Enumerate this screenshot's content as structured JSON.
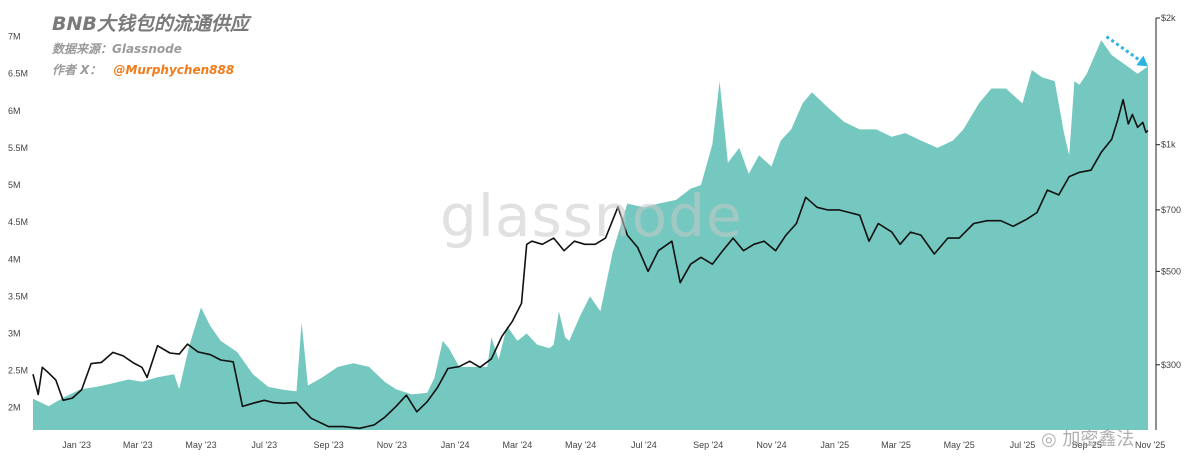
{
  "header": {
    "title": "BNB大钱包的流通供应",
    "source": "数据来源：Glassnode",
    "author_label": "作者 X：",
    "author_handle": "@Murphychen888"
  },
  "watermarks": {
    "logo": "glassnode",
    "corner": "◎ 加密鑫法"
  },
  "colors": {
    "supply_fill": "#74c8bf",
    "price_line": "#111111",
    "handle_text": "#f07c1b",
    "arrow": "#2ab3e3"
  },
  "chart_data": {
    "type": "area",
    "title": "BNB大钱包的流通供应",
    "x_axis": {
      "type": "date",
      "tick_labels": [
        "Jan '23",
        "Mar '23",
        "May '23",
        "Jul '23",
        "Sep '23",
        "Nov '23",
        "Jan '24",
        "Mar '24",
        "May '24",
        "Jul '24",
        "Sep '24",
        "Nov '24",
        "Jan '25",
        "Mar '25",
        "May '25",
        "Jul '25",
        "Sep '25",
        "Nov '25"
      ],
      "tick_dates": [
        "2023-01-01",
        "2023-03-01",
        "2023-05-01",
        "2023-07-01",
        "2023-09-01",
        "2023-11-01",
        "2024-01-01",
        "2024-03-01",
        "2024-05-01",
        "2024-07-01",
        "2024-09-01",
        "2024-11-01",
        "2025-01-01",
        "2025-03-01",
        "2025-05-01",
        "2025-07-01",
        "2025-09-01",
        "2025-11-01"
      ],
      "range": [
        "2022-11-20",
        "2025-10-30"
      ]
    },
    "y_left": {
      "tick_labels": [
        "2M",
        "2.5M",
        "3M",
        "3.5M",
        "4M",
        "4.5M",
        "5M",
        "5.5M",
        "6M",
        "6.5M",
        "7M"
      ],
      "tick_values": [
        2000000,
        2500000,
        3000000,
        3500000,
        4000000,
        4500000,
        5000000,
        5500000,
        6000000,
        6500000,
        7000000
      ],
      "range": [
        1700000,
        7250000
      ],
      "grid": false
    },
    "y_right": {
      "scale": "log",
      "tick_labels": [
        "$300",
        "$500",
        "$700",
        "$1k",
        "$2k"
      ],
      "tick_values": [
        300,
        500,
        700,
        1000,
        2000
      ],
      "range": [
        210,
        2000
      ]
    },
    "series": [
      {
        "type": "area",
        "axis": "left",
        "color": "#74c8bf",
        "points": [
          [
            "2022-11-20",
            2120000.0
          ],
          [
            "2022-12-05",
            2020000.0
          ],
          [
            "2022-12-20",
            2140000.0
          ],
          [
            "2023-01-05",
            2250000.0
          ],
          [
            "2023-01-20",
            2280000.0
          ],
          [
            "2023-02-05",
            2330000.0
          ],
          [
            "2023-02-20",
            2380000.0
          ],
          [
            "2023-03-05",
            2350000.0
          ],
          [
            "2023-03-20",
            2410000.0
          ],
          [
            "2023-04-05",
            2450000.0
          ],
          [
            "2023-04-10",
            2250000.0
          ],
          [
            "2023-04-20",
            2850000.0
          ],
          [
            "2023-05-01",
            3350000.0
          ],
          [
            "2023-05-10",
            3100000.0
          ],
          [
            "2023-05-20",
            2900000.0
          ],
          [
            "2023-06-05",
            2750000.0
          ],
          [
            "2023-06-20",
            2450000.0
          ],
          [
            "2023-07-05",
            2280000.0
          ],
          [
            "2023-07-20",
            2240000.0
          ],
          [
            "2023-08-01",
            2220000.0
          ],
          [
            "2023-08-06",
            3150000.0
          ],
          [
            "2023-08-12",
            2300000.0
          ],
          [
            "2023-08-25",
            2400000.0
          ],
          [
            "2023-09-10",
            2550000.0
          ],
          [
            "2023-09-25",
            2600000.0
          ],
          [
            "2023-10-10",
            2550000.0
          ],
          [
            "2023-10-25",
            2350000.0
          ],
          [
            "2023-11-05",
            2250000.0
          ],
          [
            "2023-11-20",
            2180000.0
          ],
          [
            "2023-12-05",
            2200000.0
          ],
          [
            "2023-12-12",
            2400000.0
          ],
          [
            "2023-12-20",
            2900000.0
          ],
          [
            "2023-12-26",
            2800000.0
          ],
          [
            "2024-01-05",
            2550000.0
          ],
          [
            "2024-01-20",
            2550000.0
          ],
          [
            "2024-02-01",
            2550000.0
          ],
          [
            "2024-02-05",
            2950000.0
          ],
          [
            "2024-02-12",
            2650000.0
          ],
          [
            "2024-02-20",
            3100000.0
          ],
          [
            "2024-03-01",
            2900000.0
          ],
          [
            "2024-03-10",
            3000000.0
          ],
          [
            "2024-03-20",
            2850000.0
          ],
          [
            "2024-04-01",
            2800000.0
          ],
          [
            "2024-04-05",
            2850000.0
          ],
          [
            "2024-04-10",
            3300000.0
          ],
          [
            "2024-04-16",
            2950000.0
          ],
          [
            "2024-04-20",
            2900000.0
          ],
          [
            "2024-05-01",
            3250000.0
          ],
          [
            "2024-05-10",
            3500000.0
          ],
          [
            "2024-05-20",
            3300000.0
          ],
          [
            "2024-06-01",
            4100000.0
          ],
          [
            "2024-06-15",
            4750000.0
          ],
          [
            "2024-07-01",
            4700000.0
          ],
          [
            "2024-07-15",
            4750000.0
          ],
          [
            "2024-08-01",
            4800000.0
          ],
          [
            "2024-08-15",
            4950000.0
          ],
          [
            "2024-08-25",
            5000000.0
          ],
          [
            "2024-09-05",
            5550000.0
          ],
          [
            "2024-09-12",
            6400000.0
          ],
          [
            "2024-09-20",
            5300000.0
          ],
          [
            "2024-10-01",
            5500000.0
          ],
          [
            "2024-10-10",
            5150000.0
          ],
          [
            "2024-10-20",
            5400000.0
          ],
          [
            "2024-11-01",
            5250000.0
          ],
          [
            "2024-11-10",
            5600000.0
          ],
          [
            "2024-11-20",
            5750000.0
          ],
          [
            "2024-12-01",
            6100000.0
          ],
          [
            "2024-12-10",
            6250000.0
          ],
          [
            "2024-12-25",
            6050000.0
          ],
          [
            "2025-01-10",
            5850000.0
          ],
          [
            "2025-01-25",
            5750000.0
          ],
          [
            "2025-02-10",
            5750000.0
          ],
          [
            "2025-02-25",
            5650000.0
          ],
          [
            "2025-03-10",
            5700000.0
          ],
          [
            "2025-03-25",
            5600000.0
          ],
          [
            "2025-04-10",
            5500000.0
          ],
          [
            "2025-04-25",
            5600000.0
          ],
          [
            "2025-05-05",
            5750000.0
          ],
          [
            "2025-05-20",
            6100000.0
          ],
          [
            "2025-06-01",
            6300000.0
          ],
          [
            "2025-06-15",
            6300000.0
          ],
          [
            "2025-07-01",
            6100000.0
          ],
          [
            "2025-07-10",
            6550000.0
          ],
          [
            "2025-07-20",
            6450000.0
          ],
          [
            "2025-08-01",
            6400000.0
          ],
          [
            "2025-08-10",
            5700000.0
          ],
          [
            "2025-08-15",
            5400000.0
          ],
          [
            "2025-08-20",
            6400000.0
          ],
          [
            "2025-08-25",
            6350000.0
          ],
          [
            "2025-09-01",
            6500000.0
          ],
          [
            "2025-09-15",
            6950000.0
          ],
          [
            "2025-09-25",
            6750000.0
          ],
          [
            "2025-10-10",
            6600000.0
          ],
          [
            "2025-10-20",
            6500000.0
          ],
          [
            "2025-10-30",
            6600000.0
          ]
        ]
      },
      {
        "type": "line",
        "axis": "right",
        "color": "#111111",
        "points": [
          [
            "2022-11-20",
            285
          ],
          [
            "2022-11-25",
            255
          ],
          [
            "2022-11-29",
            296
          ],
          [
            "2022-12-05",
            287
          ],
          [
            "2022-12-12",
            276
          ],
          [
            "2022-12-19",
            247
          ],
          [
            "2022-12-28",
            250
          ],
          [
            "2023-01-06",
            262
          ],
          [
            "2023-01-15",
            302
          ],
          [
            "2023-01-25",
            304
          ],
          [
            "2023-02-05",
            321
          ],
          [
            "2023-02-15",
            315
          ],
          [
            "2023-02-25",
            303
          ],
          [
            "2023-03-05",
            296
          ],
          [
            "2023-03-10",
            280
          ],
          [
            "2023-03-20",
            333
          ],
          [
            "2023-04-01",
            320
          ],
          [
            "2023-04-10",
            318
          ],
          [
            "2023-04-18",
            336
          ],
          [
            "2023-04-28",
            322
          ],
          [
            "2023-05-10",
            317
          ],
          [
            "2023-05-20",
            308
          ],
          [
            "2023-06-01",
            305
          ],
          [
            "2023-06-10",
            239
          ],
          [
            "2023-06-20",
            243
          ],
          [
            "2023-07-01",
            247
          ],
          [
            "2023-07-10",
            244
          ],
          [
            "2023-07-20",
            243
          ],
          [
            "2023-08-01",
            244
          ],
          [
            "2023-08-15",
            224
          ],
          [
            "2023-09-01",
            214
          ],
          [
            "2023-09-15",
            214
          ],
          [
            "2023-10-01",
            212
          ],
          [
            "2023-10-15",
            216
          ],
          [
            "2023-10-25",
            225
          ],
          [
            "2023-11-05",
            239
          ],
          [
            "2023-11-15",
            254
          ],
          [
            "2023-11-25",
            232
          ],
          [
            "2023-12-05",
            245
          ],
          [
            "2023-12-15",
            265
          ],
          [
            "2023-12-25",
            294
          ],
          [
            "2024-01-05",
            297
          ],
          [
            "2024-01-15",
            306
          ],
          [
            "2024-01-25",
            296
          ],
          [
            "2024-02-05",
            310
          ],
          [
            "2024-02-15",
            350
          ],
          [
            "2024-02-25",
            380
          ],
          [
            "2024-03-05",
            420
          ],
          [
            "2024-03-10",
            580
          ],
          [
            "2024-03-15",
            590
          ],
          [
            "2024-03-25",
            580
          ],
          [
            "2024-04-05",
            600
          ],
          [
            "2024-04-15",
            560
          ],
          [
            "2024-04-25",
            590
          ],
          [
            "2024-05-05",
            580
          ],
          [
            "2024-05-15",
            580
          ],
          [
            "2024-05-25",
            600
          ],
          [
            "2024-06-06",
            712
          ],
          [
            "2024-06-15",
            610
          ],
          [
            "2024-06-25",
            570
          ],
          [
            "2024-07-05",
            500
          ],
          [
            "2024-07-15",
            560
          ],
          [
            "2024-07-28",
            590
          ],
          [
            "2024-08-05",
            470
          ],
          [
            "2024-08-15",
            520
          ],
          [
            "2024-08-25",
            540
          ],
          [
            "2024-09-05",
            520
          ],
          [
            "2024-09-15",
            560
          ],
          [
            "2024-09-25",
            600
          ],
          [
            "2024-10-05",
            560
          ],
          [
            "2024-10-15",
            580
          ],
          [
            "2024-10-25",
            590
          ],
          [
            "2024-11-05",
            560
          ],
          [
            "2024-11-15",
            610
          ],
          [
            "2024-11-25",
            650
          ],
          [
            "2024-12-04",
            750
          ],
          [
            "2024-12-15",
            710
          ],
          [
            "2024-12-25",
            700
          ],
          [
            "2025-01-05",
            700
          ],
          [
            "2025-01-15",
            690
          ],
          [
            "2025-01-25",
            680
          ],
          [
            "2025-02-03",
            590
          ],
          [
            "2025-02-12",
            650
          ],
          [
            "2025-02-25",
            620
          ],
          [
            "2025-03-05",
            580
          ],
          [
            "2025-03-15",
            620
          ],
          [
            "2025-03-25",
            610
          ],
          [
            "2025-04-07",
            550
          ],
          [
            "2025-04-20",
            600
          ],
          [
            "2025-05-01",
            600
          ],
          [
            "2025-05-15",
            650
          ],
          [
            "2025-05-28",
            660
          ],
          [
            "2025-06-10",
            660
          ],
          [
            "2025-06-22",
            640
          ],
          [
            "2025-07-05",
            665
          ],
          [
            "2025-07-15",
            690
          ],
          [
            "2025-07-25",
            780
          ],
          [
            "2025-08-05",
            760
          ],
          [
            "2025-08-15",
            840
          ],
          [
            "2025-08-25",
            860
          ],
          [
            "2025-09-05",
            870
          ],
          [
            "2025-09-15",
            960
          ],
          [
            "2025-09-25",
            1030
          ],
          [
            "2025-10-01",
            1150
          ],
          [
            "2025-10-06",
            1280
          ],
          [
            "2025-10-11",
            1120
          ],
          [
            "2025-10-15",
            1180
          ],
          [
            "2025-10-20",
            1100
          ],
          [
            "2025-10-25",
            1130
          ],
          [
            "2025-10-28",
            1070
          ],
          [
            "2025-10-30",
            1080
          ]
        ]
      }
    ],
    "annotation": {
      "type": "dotted-arrow",
      "color": "#2ab3e3",
      "from": [
        "2025-09-20",
        7000000
      ],
      "to": [
        "2025-10-30",
        6600000
      ]
    }
  }
}
